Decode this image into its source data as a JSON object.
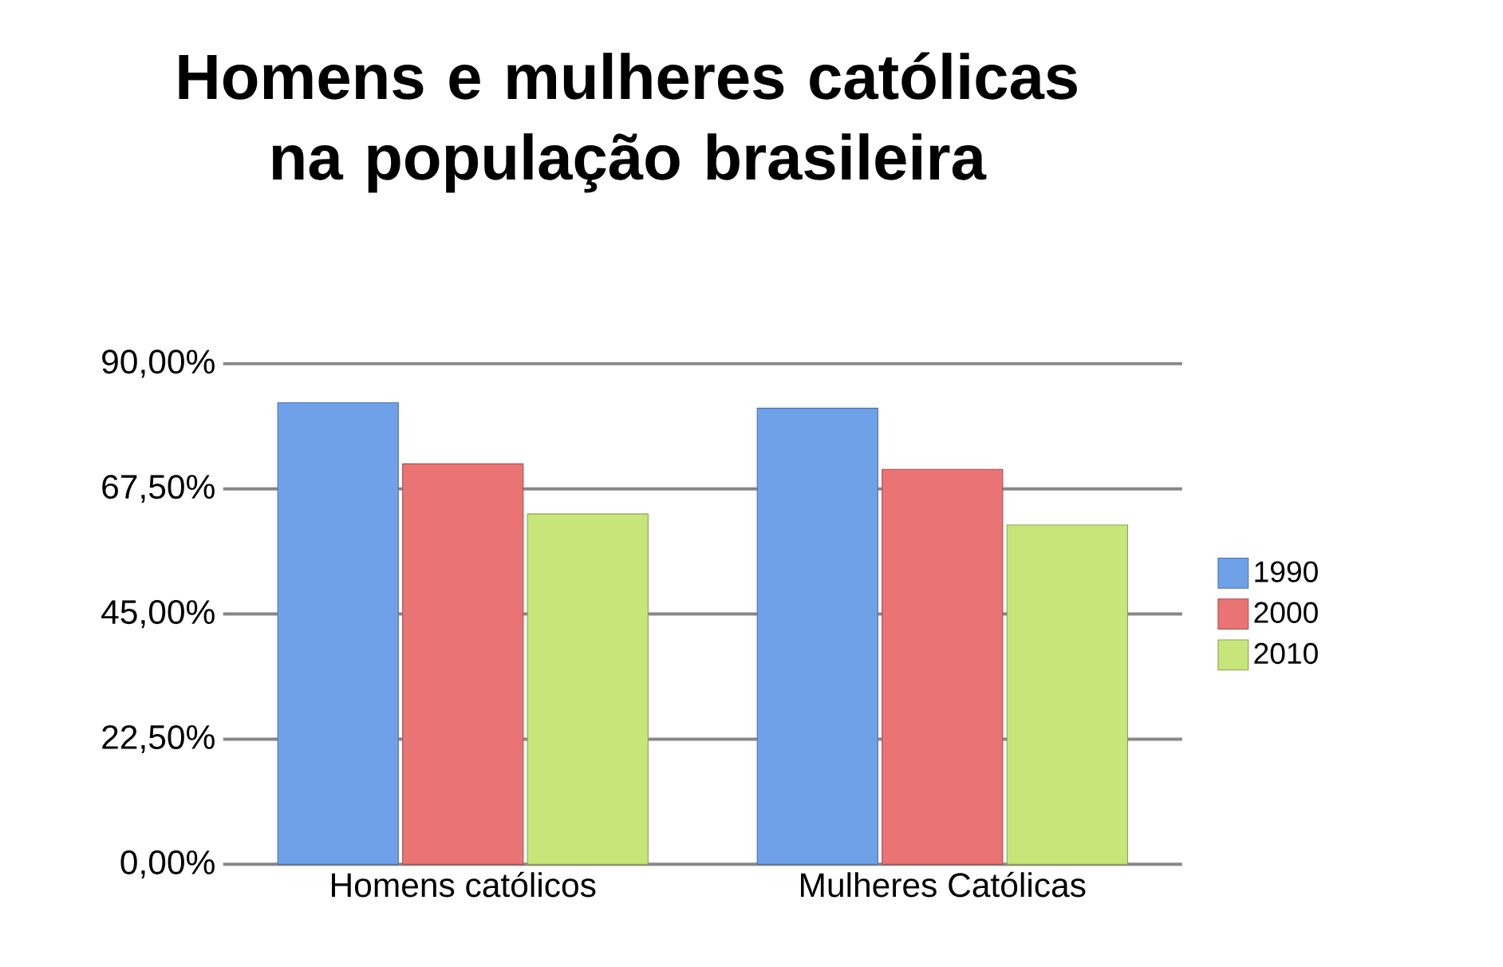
{
  "chart_data": {
    "type": "bar",
    "title": "Homens e mulheres católicas na população brasileira",
    "categories": [
      "Homens católicos",
      "Mulheres Católicas"
    ],
    "series": [
      {
        "name": "1990",
        "color": "#6fa1e8",
        "values": [
          83,
          82
        ]
      },
      {
        "name": "2000",
        "color": "#ea7373",
        "values": [
          72,
          71
        ]
      },
      {
        "name": "2010",
        "color": "#c6e67a",
        "values": [
          63,
          61
        ]
      }
    ],
    "ylim": [
      0,
      90
    ],
    "yticks": [
      {
        "value": 0,
        "label": "0,00%"
      },
      {
        "value": 22.5,
        "label": "22,50%"
      },
      {
        "value": 45,
        "label": "45,00%"
      },
      {
        "value": 67.5,
        "label": "67,50%"
      },
      {
        "value": 90,
        "label": "90,00%"
      }
    ],
    "grid": "y",
    "legend": "right"
  }
}
